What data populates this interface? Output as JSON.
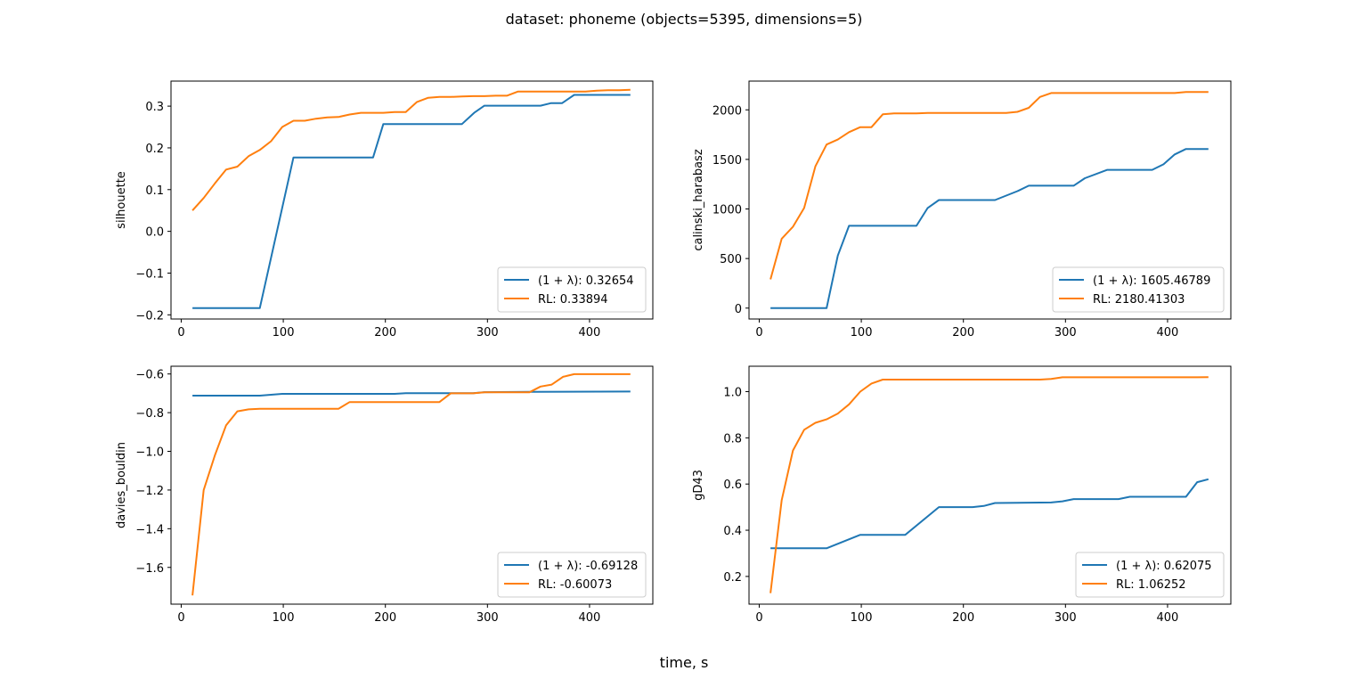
{
  "figure": {
    "suptitle": "dataset: phoneme (objects=5395, dimensions=5)",
    "xlabel": "time, s"
  },
  "colors": {
    "lambda": "#1f77b4",
    "rl": "#ff7f0e"
  },
  "chart_data": [
    {
      "type": "line",
      "ylabel": "silhouette",
      "xlim": [
        -10,
        462
      ],
      "ylim": [
        -0.21,
        0.36
      ],
      "xticks": [
        0,
        100,
        200,
        300,
        400
      ],
      "xtick_labels": [
        "0",
        "100",
        "200",
        "300",
        "400"
      ],
      "yticks": [
        -0.2,
        -0.1,
        0.0,
        0.1,
        0.2,
        0.3
      ],
      "ytick_labels": [
        "−0.2",
        "−0.1",
        "0.0",
        "0.1",
        "0.2",
        "0.3"
      ],
      "grid": false,
      "legend_position": "lower right",
      "series": [
        {
          "name": "(1 + λ): 0.32654",
          "color": "#1f77b4",
          "x": [
            11,
            77,
            110,
            188,
            198,
            275,
            287,
            297,
            352,
            362,
            373,
            385,
            440
          ],
          "y": [
            -0.184,
            -0.184,
            0.177,
            0.177,
            0.257,
            0.257,
            0.284,
            0.301,
            0.301,
            0.307,
            0.307,
            0.327,
            0.327
          ]
        },
        {
          "name": "RL: 0.33894",
          "color": "#ff7f0e",
          "x": [
            11,
            22,
            33,
            44,
            55,
            66,
            77,
            88,
            99,
            110,
            121,
            132,
            143,
            154,
            165,
            176,
            187,
            198,
            209,
            220,
            231,
            242,
            253,
            264,
            275,
            286,
            297,
            308,
            319,
            330,
            341,
            352,
            363,
            374,
            385,
            396,
            407,
            418,
            429,
            440
          ],
          "y": [
            0.05,
            0.08,
            0.115,
            0.148,
            0.155,
            0.18,
            0.195,
            0.216,
            0.25,
            0.265,
            0.265,
            0.27,
            0.273,
            0.274,
            0.28,
            0.284,
            0.284,
            0.284,
            0.286,
            0.286,
            0.31,
            0.32,
            0.322,
            0.322,
            0.323,
            0.324,
            0.324,
            0.325,
            0.325,
            0.335,
            0.335,
            0.335,
            0.335,
            0.335,
            0.335,
            0.335,
            0.337,
            0.338,
            0.338,
            0.339
          ]
        }
      ]
    },
    {
      "type": "line",
      "ylabel": "calinski_harabasz",
      "xlim": [
        -10,
        462
      ],
      "ylim": [
        -110,
        2290
      ],
      "xticks": [
        0,
        100,
        200,
        300,
        400
      ],
      "xtick_labels": [
        "0",
        "100",
        "200",
        "300",
        "400"
      ],
      "yticks": [
        0,
        500,
        1000,
        1500,
        2000
      ],
      "ytick_labels": [
        "0",
        "500",
        "1000",
        "1500",
        "2000"
      ],
      "grid": false,
      "legend_position": "lower right",
      "series": [
        {
          "name": "(1 + λ): 1605.46789",
          "color": "#1f77b4",
          "x": [
            11,
            66,
            77,
            88,
            154,
            165,
            176,
            231,
            253,
            264,
            308,
            319,
            341,
            385,
            396,
            407,
            418,
            440
          ],
          "y": [
            0,
            0,
            530,
            830,
            830,
            1010,
            1090,
            1090,
            1180,
            1235,
            1235,
            1310,
            1395,
            1395,
            1450,
            1550,
            1605,
            1605
          ]
        },
        {
          "name": "RL: 2180.41303",
          "color": "#ff7f0e",
          "x": [
            11,
            22,
            33,
            44,
            55,
            66,
            77,
            88,
            99,
            110,
            121,
            132,
            143,
            154,
            165,
            176,
            187,
            198,
            209,
            220,
            231,
            242,
            253,
            264,
            275,
            286,
            297,
            308,
            319,
            330,
            341,
            352,
            363,
            374,
            385,
            396,
            407,
            418,
            429,
            440
          ],
          "y": [
            290,
            700,
            820,
            1010,
            1430,
            1650,
            1700,
            1775,
            1825,
            1825,
            1955,
            1965,
            1965,
            1965,
            1968,
            1968,
            1968,
            1968,
            1968,
            1968,
            1968,
            1968,
            1980,
            2020,
            2130,
            2170,
            2170,
            2170,
            2170,
            2170,
            2170,
            2170,
            2170,
            2170,
            2170,
            2170,
            2170,
            2180,
            2180,
            2180
          ]
        }
      ]
    },
    {
      "type": "line",
      "ylabel": "davies_bouldin",
      "xlim": [
        -10,
        462
      ],
      "ylim": [
        -1.79,
        -0.56
      ],
      "xticks": [
        0,
        100,
        200,
        300,
        400
      ],
      "xtick_labels": [
        "0",
        "100",
        "200",
        "300",
        "400"
      ],
      "yticks": [
        -1.6,
        -1.4,
        -1.2,
        -1.0,
        -0.8,
        -0.6
      ],
      "ytick_labels": [
        "−1.6",
        "−1.4",
        "−1.2",
        "−1.0",
        "−0.8",
        "−0.6"
      ],
      "grid": false,
      "legend_position": "lower right",
      "series": [
        {
          "name": "(1 + λ): -0.69128",
          "color": "#1f77b4",
          "x": [
            11,
            77,
            99,
            209,
            220,
            286,
            297,
            341,
            440
          ],
          "y": [
            -0.712,
            -0.712,
            -0.703,
            -0.703,
            -0.699,
            -0.699,
            -0.694,
            -0.692,
            -0.691
          ]
        },
        {
          "name": "RL: -0.60073",
          "color": "#ff7f0e",
          "x": [
            11,
            22,
            33,
            44,
            55,
            66,
            77,
            88,
            99,
            110,
            121,
            132,
            143,
            154,
            165,
            176,
            187,
            198,
            209,
            220,
            231,
            242,
            253,
            264,
            275,
            286,
            297,
            308,
            319,
            330,
            341,
            352,
            363,
            374,
            385,
            396,
            407,
            418,
            429,
            440
          ],
          "y": [
            -1.745,
            -1.2,
            -1.02,
            -0.865,
            -0.793,
            -0.783,
            -0.78,
            -0.78,
            -0.78,
            -0.78,
            -0.78,
            -0.78,
            -0.78,
            -0.78,
            -0.745,
            -0.745,
            -0.745,
            -0.745,
            -0.745,
            -0.745,
            -0.745,
            -0.745,
            -0.745,
            -0.7,
            -0.7,
            -0.7,
            -0.695,
            -0.695,
            -0.695,
            -0.695,
            -0.695,
            -0.665,
            -0.655,
            -0.615,
            -0.601,
            -0.601,
            -0.601,
            -0.601,
            -0.601,
            -0.601
          ]
        }
      ]
    },
    {
      "type": "line",
      "ylabel": "gD43",
      "xlim": [
        -10,
        462
      ],
      "ylim": [
        0.08,
        1.11
      ],
      "xticks": [
        0,
        100,
        200,
        300,
        400
      ],
      "xtick_labels": [
        "0",
        "100",
        "200",
        "300",
        "400"
      ],
      "yticks": [
        0.2,
        0.4,
        0.6,
        0.8,
        1.0
      ],
      "ytick_labels": [
        "0.2",
        "0.4",
        "0.6",
        "0.8",
        "1.0"
      ],
      "grid": false,
      "legend_position": "lower right",
      "series": [
        {
          "name": "(1 + λ): 0.62075",
          "color": "#1f77b4",
          "x": [
            11,
            66,
            99,
            143,
            176,
            209,
            220,
            231,
            286,
            297,
            308,
            352,
            363,
            418,
            429,
            440
          ],
          "y": [
            0.322,
            0.322,
            0.38,
            0.38,
            0.5,
            0.5,
            0.505,
            0.518,
            0.52,
            0.525,
            0.535,
            0.535,
            0.545,
            0.545,
            0.608,
            0.621
          ]
        },
        {
          "name": "RL: 1.06252",
          "color": "#ff7f0e",
          "x": [
            11,
            22,
            33,
            44,
            55,
            66,
            77,
            88,
            99,
            110,
            121,
            132,
            143,
            154,
            165,
            176,
            187,
            198,
            209,
            220,
            231,
            242,
            253,
            264,
            275,
            286,
            297,
            308,
            319,
            330,
            341,
            352,
            363,
            374,
            385,
            396,
            407,
            418,
            429,
            440
          ],
          "y": [
            0.128,
            0.53,
            0.745,
            0.835,
            0.865,
            0.88,
            0.905,
            0.945,
            1.0,
            1.035,
            1.052,
            1.052,
            1.052,
            1.052,
            1.052,
            1.052,
            1.052,
            1.052,
            1.052,
            1.052,
            1.052,
            1.052,
            1.052,
            1.052,
            1.052,
            1.055,
            1.062,
            1.062,
            1.062,
            1.062,
            1.062,
            1.062,
            1.062,
            1.062,
            1.062,
            1.062,
            1.062,
            1.062,
            1.062,
            1.0625
          ]
        }
      ]
    }
  ]
}
